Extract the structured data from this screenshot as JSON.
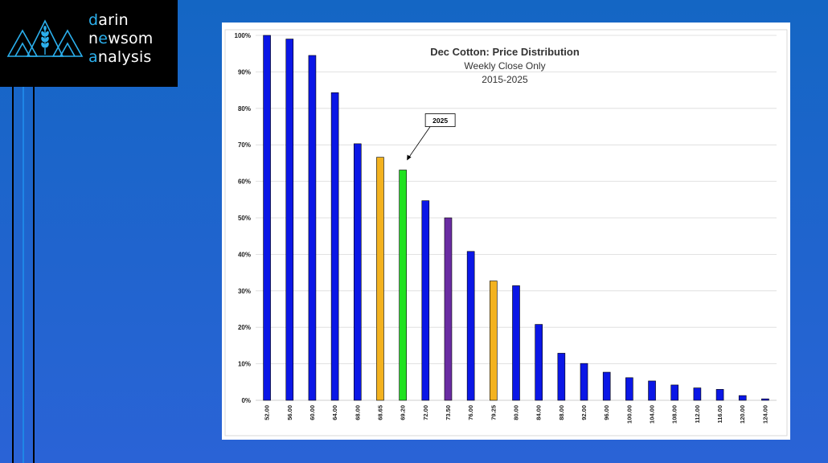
{
  "brand": {
    "line1_accent": "d",
    "line1_rest": "arin",
    "line2_pre": "n",
    "line2_accent": "e",
    "line2_rest": "wsom",
    "line3_accent": "a",
    "line3_rest": "nalysis",
    "icon": "mountains-wheat-logo",
    "accent_color": "#2bb0ee"
  },
  "chart_data": {
    "type": "bar",
    "title": "Dec Cotton: Price Distribution",
    "subtitle_1": "Weekly Close Only",
    "subtitle_2": "2015-2025",
    "xlabel": "",
    "ylabel": "",
    "ylim": [
      0,
      100
    ],
    "y_ticks": [
      "0%",
      "10%",
      "20%",
      "30%",
      "40%",
      "50%",
      "60%",
      "70%",
      "80%",
      "90%",
      "100%"
    ],
    "grid": true,
    "categories": [
      "52.00",
      "56.00",
      "60.00",
      "64.00",
      "68.00",
      "68.65",
      "69.20",
      "72.00",
      "73.50",
      "76.00",
      "79.25",
      "80.00",
      "84.00",
      "88.00",
      "92.00",
      "96.00",
      "100.00",
      "104.00",
      "108.00",
      "112.00",
      "116.00",
      "120.00",
      "124.00"
    ],
    "values": [
      100,
      99,
      94.5,
      84.3,
      70.3,
      66.6,
      63.1,
      54.7,
      50,
      40.8,
      32.7,
      31.4,
      20.8,
      12.9,
      10.1,
      7.7,
      6.2,
      5.3,
      4.2,
      3.4,
      3.0,
      1.3,
      0.4
    ],
    "bar_colors": [
      "#0b17e6",
      "#0b17e6",
      "#0b17e6",
      "#0b17e6",
      "#0b17e6",
      "#f3b21f",
      "#1fe21f",
      "#0b17e6",
      "#6a2ca2",
      "#0b17e6",
      "#f3b21f",
      "#0b17e6",
      "#0b17e6",
      "#0b17e6",
      "#0b17e6",
      "#0b17e6",
      "#0b17e6",
      "#0b17e6",
      "#0b17e6",
      "#0b17e6",
      "#0b17e6",
      "#0b17e6",
      "#0b17e6"
    ],
    "annotation": {
      "text": "2025",
      "category": "69.20"
    }
  }
}
